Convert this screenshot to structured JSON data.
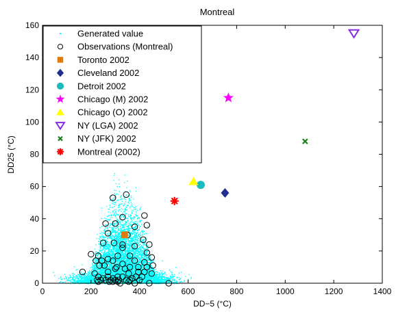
{
  "chart_data": {
    "type": "scatter",
    "title": "Montreal",
    "xlabel": "DD−5 (°C)",
    "ylabel": "DD25 (°C)",
    "xlim": [
      0,
      1400
    ],
    "ylim": [
      0,
      160
    ],
    "xticks": [
      0,
      200,
      400,
      600,
      800,
      1000,
      1200,
      1400
    ],
    "yticks": [
      0,
      20,
      40,
      60,
      80,
      100,
      120,
      140,
      160
    ],
    "grid": false,
    "legend_position": "top-left",
    "generated_cloud": {
      "name": "Generated value",
      "color": "#00ffff",
      "approx_center_x": 330,
      "approx_spread_x": 85,
      "approx_y_max": 70,
      "approx_n": 9000
    },
    "series": [
      {
        "name": "Observations (Montreal)",
        "marker": "circle-open",
        "color": "#000000",
        "points": [
          [
            290,
            53
          ],
          [
            345,
            55
          ],
          [
            420,
            42
          ],
          [
            330,
            41
          ],
          [
            430,
            36
          ],
          [
            260,
            37
          ],
          [
            300,
            37
          ],
          [
            380,
            35
          ],
          [
            270,
            31
          ],
          [
            350,
            30
          ],
          [
            415,
            27
          ],
          [
            295,
            25
          ],
          [
            330,
            24
          ],
          [
            250,
            25
          ],
          [
            440,
            24
          ],
          [
            380,
            23
          ],
          [
            330,
            22
          ],
          [
            430,
            19
          ],
          [
            200,
            18
          ],
          [
            230,
            17
          ],
          [
            310,
            17
          ],
          [
            360,
            17
          ],
          [
            450,
            16
          ],
          [
            270,
            15
          ],
          [
            220,
            14
          ],
          [
            245,
            14
          ],
          [
            290,
            14
          ],
          [
            380,
            14
          ],
          [
            420,
            13
          ],
          [
            330,
            12
          ],
          [
            455,
            11
          ],
          [
            235,
            11
          ],
          [
            255,
            11
          ],
          [
            305,
            10
          ],
          [
            360,
            10
          ],
          [
            395,
            10
          ],
          [
            430,
            10
          ],
          [
            300,
            9
          ],
          [
            340,
            9
          ],
          [
            165,
            7
          ],
          [
            270,
            7
          ],
          [
            395,
            7
          ],
          [
            420,
            7
          ],
          [
            215,
            6
          ],
          [
            355,
            6
          ],
          [
            450,
            6
          ],
          [
            230,
            4
          ],
          [
            270,
            4
          ],
          [
            310,
            4
          ],
          [
            330,
            4
          ],
          [
            385,
            4
          ],
          [
            410,
            4
          ],
          [
            250,
            3
          ],
          [
            290,
            3
          ],
          [
            370,
            3
          ],
          [
            225,
            2
          ],
          [
            240,
            2
          ],
          [
            260,
            2
          ],
          [
            280,
            2
          ],
          [
            300,
            2
          ],
          [
            315,
            2
          ],
          [
            345,
            2
          ],
          [
            360,
            2
          ],
          [
            400,
            2
          ],
          [
            230,
            1
          ],
          [
            275,
            1
          ],
          [
            290,
            1
          ],
          [
            310,
            1
          ],
          [
            355,
            1
          ],
          [
            320,
            0
          ],
          [
            380,
            0
          ],
          [
            440,
            0
          ],
          [
            520,
            0
          ]
        ]
      },
      {
        "name": "Toronto 2002",
        "marker": "square",
        "color": "#e07b0a",
        "points": [
          [
            338,
            30
          ]
        ]
      },
      {
        "name": "Cleveland 2002",
        "marker": "diamond",
        "color": "#1f2f8f",
        "points": [
          [
            752,
            56
          ]
        ]
      },
      {
        "name": "Detroit 2002",
        "marker": "circle",
        "color": "#1cbcbc",
        "points": [
          [
            652,
            61
          ]
        ]
      },
      {
        "name": "Chicago (M) 2002",
        "marker": "star",
        "color": "#ff00ff",
        "points": [
          [
            766,
            115
          ]
        ]
      },
      {
        "name": "Chicago (O) 2002",
        "marker": "triangle-up",
        "color": "#ffff00",
        "points": [
          [
            622,
            63
          ]
        ]
      },
      {
        "name": "NY (LGA) 2002",
        "marker": "triangle-down-open",
        "color": "#8a2be2",
        "points": [
          [
            1283,
            155
          ]
        ]
      },
      {
        "name": "NY (JFK) 2002",
        "marker": "x",
        "color": "#1a7f1a",
        "points": [
          [
            1082,
            88
          ]
        ]
      },
      {
        "name": "Montreal (2002)",
        "marker": "asterisk",
        "color": "#ff0000",
        "points": [
          [
            544,
            51
          ]
        ]
      }
    ]
  }
}
